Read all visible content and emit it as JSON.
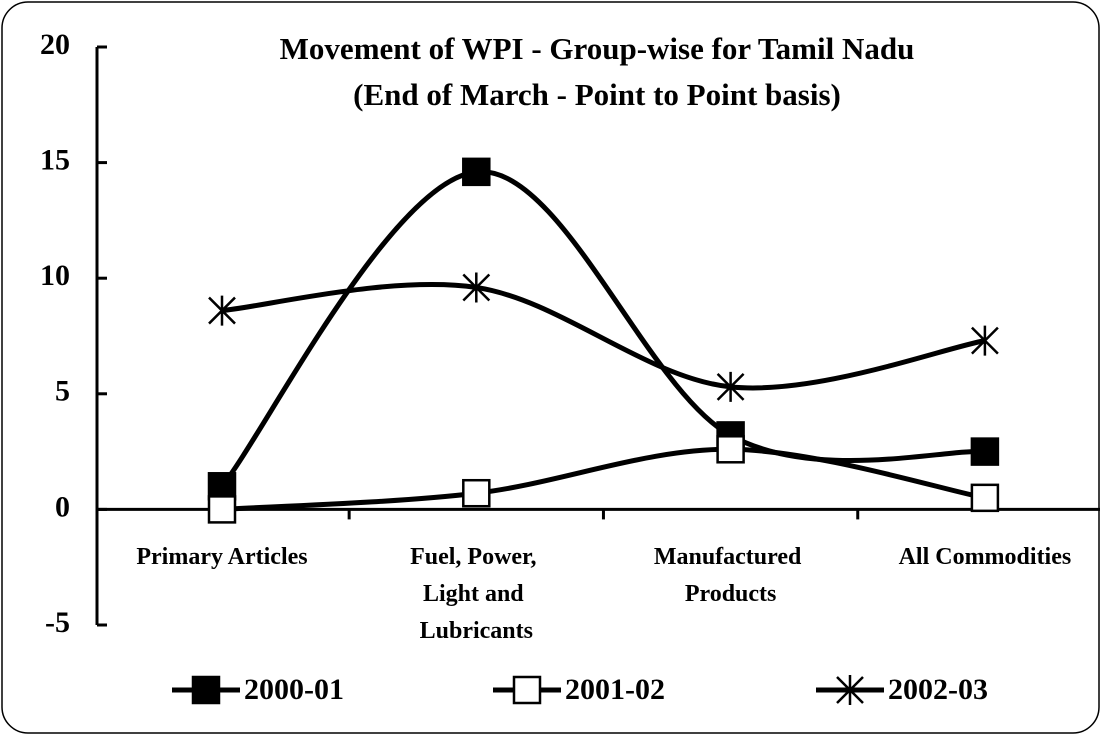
{
  "chart_data": {
    "type": "line",
    "title": "Movement of WPI - Group-wise for Tamil Nadu",
    "subtitle": "(End of March - Point to Point basis)",
    "categories": [
      "Primary Articles",
      "Fuel, Power, Light and Lubricants",
      "Manufactured Products",
      "All Commodities"
    ],
    "series": [
      {
        "name": "2000-01",
        "color": "#000000",
        "marker": "filled-square",
        "values": [
          1.0,
          14.6,
          3.2,
          2.5
        ]
      },
      {
        "name": "2001-02",
        "color": "#000000",
        "marker": "open-square",
        "values": [
          0.0,
          0.7,
          2.6,
          0.5
        ]
      },
      {
        "name": "2002-03",
        "color": "#000000",
        "marker": "asterisk",
        "values": [
          8.6,
          9.6,
          5.3,
          7.3
        ]
      }
    ],
    "ylim": [
      -5,
      20
    ],
    "yticks": [
      -5,
      0,
      5,
      10,
      15,
      20
    ],
    "smooth": true,
    "grid": false,
    "legend": "bottom"
  }
}
